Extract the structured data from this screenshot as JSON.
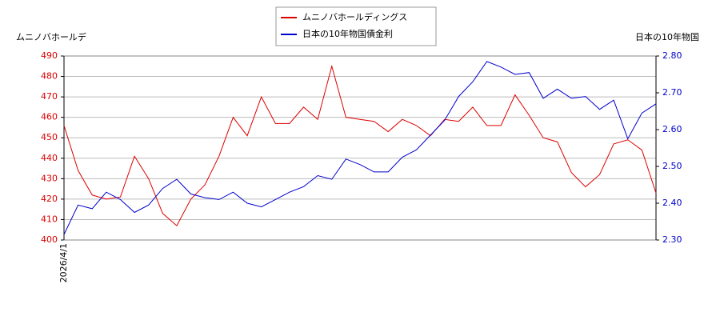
{
  "chart_data": {
    "type": "line",
    "y_label": "ムニノバホールデ",
    "y2_label": "日本の10年物国",
    "categories": [
      "2026/4/1",
      null,
      null,
      null,
      null,
      null,
      null,
      null,
      null,
      null,
      null,
      null,
      null,
      null,
      null,
      null,
      null,
      null,
      null,
      null,
      null,
      null,
      null,
      null,
      null,
      null,
      null,
      null,
      null,
      null,
      null,
      null,
      null,
      null,
      null,
      null,
      null,
      null,
      null,
      null,
      null,
      null,
      null
    ],
    "series": [
      {
        "name": "ムニノバホールディングス",
        "color": "#dd0000",
        "values": [
          456,
          434,
          422,
          420,
          421,
          441,
          430,
          413,
          407,
          420,
          427,
          441,
          460,
          451,
          470,
          457,
          457,
          465,
          459,
          485,
          460,
          459,
          458,
          453,
          459,
          456,
          451,
          459,
          458,
          465,
          456,
          456,
          471,
          461,
          450,
          448,
          433,
          426,
          432,
          447,
          449,
          444,
          423
        ]
      },
      {
        "name": "日本の10年物国債金利",
        "color": "#0000cc",
        "axis": "y2",
        "values": [
          2.315,
          2.395,
          2.385,
          2.43,
          2.41,
          2.375,
          2.395,
          2.44,
          2.465,
          2.425,
          2.415,
          2.41,
          2.43,
          2.4,
          2.39,
          2.41,
          2.43,
          2.445,
          2.475,
          2.465,
          2.52,
          2.505,
          2.485,
          2.485,
          2.525,
          2.545,
          2.585,
          2.625,
          2.69,
          2.73,
          2.785,
          2.77,
          2.75,
          2.755,
          2.685,
          2.71,
          2.685,
          2.69,
          2.655,
          2.68,
          2.575,
          2.645,
          2.67
        ]
      }
    ],
    "ylim": [
      400,
      490
    ],
    "yticks": [
      400,
      410,
      420,
      430,
      440,
      450,
      460,
      470,
      480,
      490
    ],
    "y2lim": [
      2.3,
      2.8
    ],
    "y2ticks": [
      {
        "value": 2.3,
        "label": "2.30"
      },
      {
        "value": 2.4,
        "label": "2.40"
      },
      {
        "value": 2.5,
        "label": "2.50"
      },
      {
        "value": 2.6,
        "label": "2.60"
      },
      {
        "value": 2.7,
        "label": "2.70"
      },
      {
        "value": 2.8,
        "label": "2.80"
      }
    ],
    "grid": true
  }
}
